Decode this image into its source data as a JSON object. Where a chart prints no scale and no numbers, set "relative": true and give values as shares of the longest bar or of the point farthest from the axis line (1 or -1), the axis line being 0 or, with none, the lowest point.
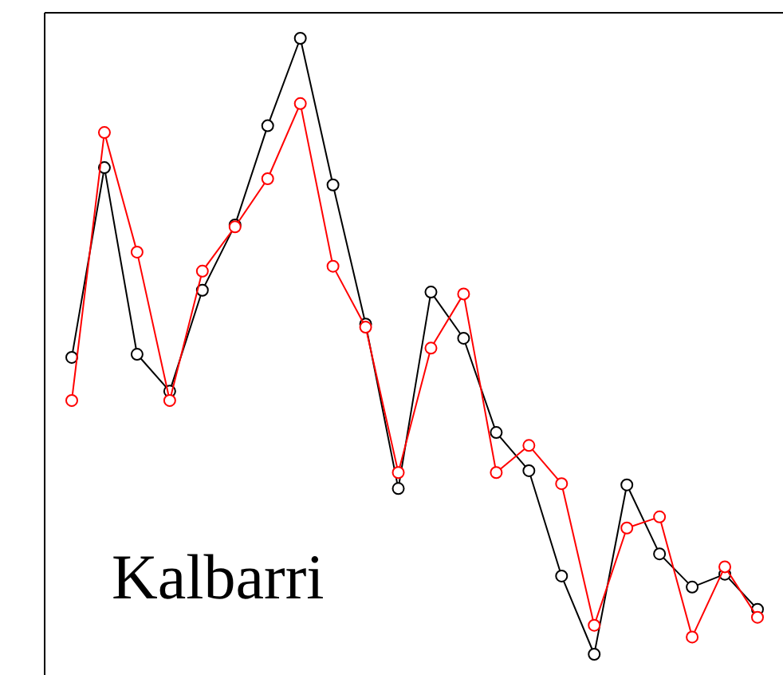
{
  "chart_data": {
    "type": "line",
    "relative": true,
    "categories": [
      null,
      null,
      null,
      null,
      null,
      null,
      null,
      null,
      null,
      null,
      null,
      null,
      null,
      null,
      null,
      null,
      null,
      null,
      null,
      null,
      null,
      null
    ],
    "series": [
      {
        "color": "#000000",
        "values": [
          0.482,
          0.79,
          0.487,
          0.427,
          0.591,
          0.697,
          0.858,
          1,
          0.762,
          0.536,
          0.269,
          0.588,
          0.513,
          0.36,
          0.298,
          0.127,
          0,
          0.275,
          0.163,
          0.109,
          0.13,
          0.073
        ]
      },
      {
        "color": "#ff0000",
        "values": [
          0.412,
          0.847,
          0.653,
          0.412,
          0.622,
          0.694,
          0.772,
          0.894,
          0.63,
          0.531,
          0.295,
          0.497,
          0.585,
          0.295,
          0.339,
          0.277,
          0.047,
          0.205,
          0.223,
          0.028,
          0.142,
          0.06
        ]
      }
    ],
    "marker": "circle",
    "line_style": "solid",
    "annotations": [
      "Kalbarri"
    ]
  }
}
